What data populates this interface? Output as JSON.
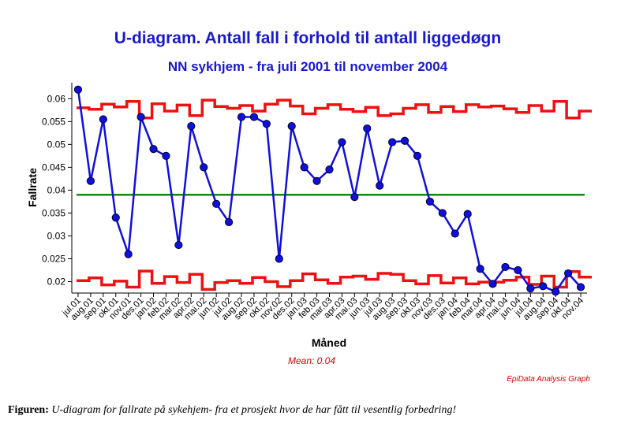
{
  "chart_data": {
    "type": "line",
    "title": "U-diagram. Antall fall i forhold til antall liggedøgn",
    "subtitle": "NN sykhjem - fra juli 2001 til november 2004",
    "xlabel": "Måned",
    "ylabel": "Fallrate",
    "ylim": [
      0.0175,
      0.0635
    ],
    "yticks": [
      0.02,
      0.025,
      0.03,
      0.035,
      0.04,
      0.045,
      0.05,
      0.055,
      0.06
    ],
    "ytick_labels": [
      "0.02",
      "0.025",
      "0.03",
      "0.035",
      "0.04",
      "0.045",
      "0.05",
      "0.055",
      "0.06"
    ],
    "grid": false,
    "categories": [
      "jul.01",
      "aug.01",
      "sep.01",
      "okt.01",
      "nov.01",
      "des.01",
      "jan.02",
      "feb.02",
      "mar.02",
      "apr.02",
      "mai.02",
      "jun.02",
      "jul.02",
      "aug.02",
      "sep.02",
      "okt.02",
      "nov.02",
      "des.02",
      "jan.03",
      "feb.03",
      "mar.03",
      "apr.03",
      "mai.03",
      "jun.03",
      "jul.03",
      "aug.03",
      "sep.03",
      "okt.03",
      "nov.03",
      "des.03",
      "jan.04",
      "feb.04",
      "mar.04",
      "apr.04",
      "mai.04",
      "jun.04",
      "jul.04",
      "aug.04",
      "sep.04",
      "okt.04",
      "nov.04"
    ],
    "series": [
      {
        "values": [
          0.062,
          0.042,
          0.0555,
          0.034,
          0.026,
          0.056,
          0.049,
          0.0475,
          0.028,
          0.054,
          0.045,
          0.037,
          0.033,
          0.056,
          0.056,
          0.0545,
          0.025,
          0.054,
          0.045,
          0.042,
          0.0445,
          0.0505,
          0.0385,
          0.0535,
          0.041,
          0.0505,
          0.0508,
          0.0475,
          0.0375,
          0.035,
          0.0305,
          0.0348,
          0.0228,
          0.0195,
          0.0232,
          0.0225,
          0.0185,
          0.019,
          0.0178,
          0.0218,
          0.0188
        ],
        "color": "#1010dd",
        "marker": "circle"
      },
      {
        "values": [
          0.058,
          0.0577,
          0.0588,
          0.0582,
          0.0594,
          0.0558,
          0.0589,
          0.0573,
          0.0586,
          0.0563,
          0.0597,
          0.0583,
          0.0579,
          0.0585,
          0.0573,
          0.0588,
          0.0597,
          0.0584,
          0.0567,
          0.0579,
          0.0587,
          0.0577,
          0.0572,
          0.0581,
          0.0563,
          0.0567,
          0.0579,
          0.0587,
          0.057,
          0.0583,
          0.0572,
          0.0587,
          0.0582,
          0.0584,
          0.0578,
          0.057,
          0.0585,
          0.0573,
          0.0594,
          0.0558,
          0.0573
        ],
        "color": "#ee1111",
        "style": "step",
        "role": "upper-limit"
      },
      {
        "values": [
          0.0202,
          0.0208,
          0.0193,
          0.0201,
          0.0188,
          0.0223,
          0.0196,
          0.0211,
          0.0198,
          0.0216,
          0.0183,
          0.0198,
          0.0202,
          0.0196,
          0.0209,
          0.02,
          0.0189,
          0.0202,
          0.0217,
          0.0204,
          0.0196,
          0.021,
          0.0212,
          0.0205,
          0.0218,
          0.0216,
          0.0202,
          0.0195,
          0.0213,
          0.0197,
          0.0208,
          0.0195,
          0.0199,
          0.0199,
          0.0203,
          0.021,
          0.0194,
          0.0212,
          0.0188,
          0.0222,
          0.021
        ],
        "color": "#ee1111",
        "style": "step",
        "role": "lower-limit"
      }
    ],
    "mean_line": {
      "value": 0.039,
      "color": "#118811"
    },
    "mean_text": "Mean: 0.04"
  },
  "footer": {
    "credit": "EpiData Analysis Graph",
    "caption_label": "Figuren:",
    "caption_text": "U-diagram for fallrate på sykehjem- fra et prosjekt hvor de har fått til vesentlig forbedring!"
  }
}
